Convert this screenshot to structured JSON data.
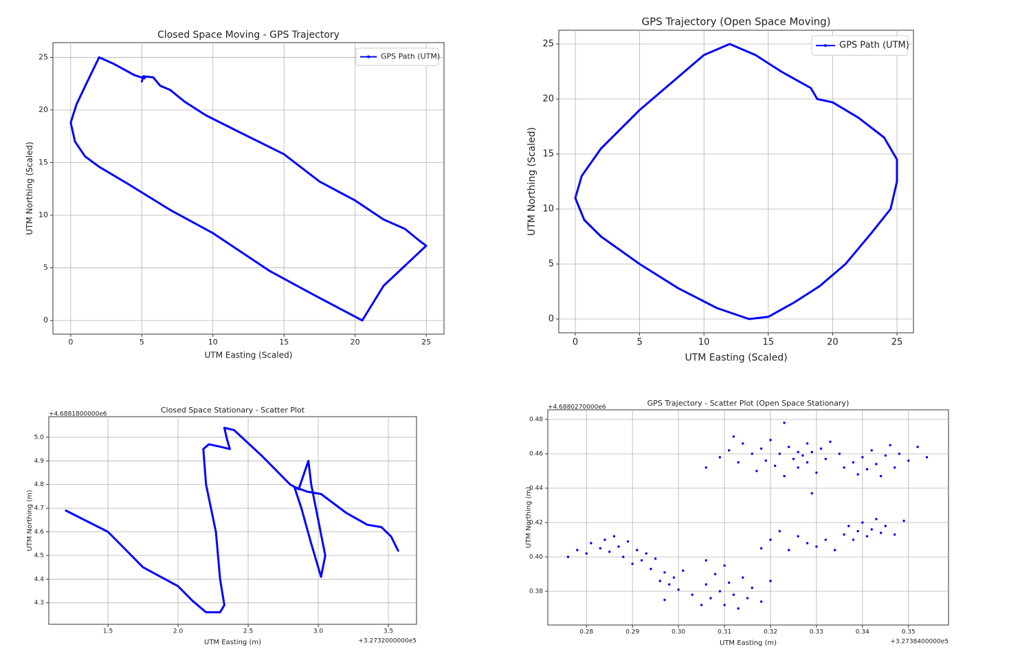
{
  "chart_data": [
    {
      "type": "line",
      "title": "Closed Space Moving - GPS Trajectory",
      "xlabel": "UTM Easting (Scaled)",
      "ylabel": "UTM Northing (Scaled)",
      "xlim": [
        -1.25,
        26.25
      ],
      "ylim": [
        -1.3,
        26.4
      ],
      "xticks": [
        0,
        5,
        10,
        15,
        20,
        25
      ],
      "yticks": [
        0,
        5,
        10,
        15,
        20,
        25
      ],
      "grid": true,
      "legend": "upper right",
      "series": [
        {
          "name": "GPS Path (UTM)",
          "color": "#0000ff",
          "x": [
            5,
            5.1,
            5.8,
            6.3,
            7,
            8,
            9.5,
            12,
            15,
            17.5,
            20,
            22,
            23.5,
            24.5,
            25,
            23.5,
            22,
            20.5,
            17,
            14,
            10,
            7,
            4,
            2,
            1,
            0.3,
            0,
            0.4,
            1.1,
            2,
            3,
            4.5,
            5.2
          ],
          "y": [
            22.7,
            23.2,
            23.1,
            22.3,
            21.9,
            20.8,
            19.5,
            17.8,
            15.8,
            13.2,
            11.4,
            9.6,
            8.7,
            7.6,
            7.1,
            5.2,
            3.3,
            0,
            2.5,
            4.7,
            8.3,
            10.5,
            13,
            14.6,
            15.6,
            17,
            18.8,
            20.5,
            22.5,
            25,
            24.4,
            23.3,
            23.0
          ]
        }
      ]
    },
    {
      "type": "line",
      "title": "GPS Trajectory (Open Space Moving)",
      "xlabel": "UTM Easting (Scaled)",
      "ylabel": "UTM Northing (Scaled)",
      "xlim": [
        -1.28,
        26.28
      ],
      "ylim": [
        -1.25,
        26.25
      ],
      "xticks": [
        0,
        5,
        10,
        15,
        20,
        25
      ],
      "yticks": [
        0,
        5,
        10,
        15,
        20,
        25
      ],
      "grid": true,
      "legend": "upper right",
      "series": [
        {
          "name": "GPS Path (UTM)",
          "color": "#0000ff",
          "x": [
            0,
            0.5,
            2,
            5,
            8,
            10,
            12,
            14,
            16,
            18.3,
            18.8,
            20,
            22,
            24,
            25,
            25,
            24.5,
            23,
            21,
            19,
            17,
            15,
            13.5,
            11,
            8,
            5,
            2,
            0.7,
            0
          ],
          "y": [
            11,
            13,
            15.5,
            19,
            22,
            24,
            25,
            24,
            22.5,
            21,
            20,
            19.7,
            18.3,
            16.5,
            14.5,
            12.5,
            10,
            7.8,
            5,
            3,
            1.5,
            0.2,
            0,
            1,
            2.8,
            5,
            7.5,
            9,
            11
          ]
        }
      ]
    },
    {
      "type": "line",
      "title": "Closed Space Stationary - Scatter Plot",
      "xlabel": "UTM Easting (m)",
      "ylabel": "UTM Northing (m)",
      "x_offset": "+3.2732000000e5",
      "y_offset": "+4.6881800000e6",
      "xlim": [
        1.078,
        3.701
      ],
      "ylim": [
        4.209,
        5.087
      ],
      "xticks": [
        1.5,
        {
          "value": 2,
          "label": "2.0"
        },
        2.5,
        {
          "value": 3,
          "label": "3.0"
        },
        3.5
      ],
      "yticks": [
        4.3,
        4.4,
        4.5,
        4.6,
        4.7,
        4.8,
        4.9,
        {
          "value": 5,
          "label": "5.0"
        }
      ],
      "grid": true,
      "series": [
        {
          "color": "#0000ff",
          "x": [
            1.2,
            1.5,
            1.75,
            2.0,
            2.1,
            2.2,
            2.3,
            2.33,
            2.3,
            2.27,
            2.2,
            2.18,
            2.22,
            2.3,
            2.37,
            2.35,
            2.33,
            2.4,
            2.6,
            2.8,
            2.86,
            2.93,
            2.95,
            3.0,
            3.05,
            3.02,
            2.95,
            2.88,
            2.83,
            2.92,
            3.02,
            3.2,
            3.35,
            3.45,
            3.52,
            3.57
          ],
          "y": [
            4.69,
            4.6,
            4.45,
            4.37,
            4.31,
            4.26,
            4.26,
            4.29,
            4.4,
            4.6,
            4.8,
            4.95,
            4.97,
            4.96,
            4.95,
            4.99,
            5.04,
            5.03,
            4.92,
            4.8,
            4.78,
            4.9,
            4.8,
            4.65,
            4.5,
            4.41,
            4.55,
            4.7,
            4.79,
            4.77,
            4.76,
            4.68,
            4.63,
            4.62,
            4.58,
            4.52
          ]
        }
      ]
    },
    {
      "type": "scatter",
      "title": "GPS Trajectory - Scatter Plot (Open Space Stationary)",
      "xlabel": "UTM Easting (m)",
      "ylabel": "UTM Northing (m)",
      "x_offset": "+3.2738400000e5",
      "y_offset": "+4.6880270000e6",
      "xlim": [
        0.2716,
        0.3587
      ],
      "ylim": [
        0.3604,
        0.4856
      ],
      "xticks": [
        0.28,
        0.29,
        {
          "value": 0.3,
          "label": "0.30"
        },
        0.31,
        0.32,
        0.33,
        0.34,
        0.35
      ],
      "yticks": [
        0.38,
        {
          "value": 0.4,
          "label": "0.40"
        },
        0.42,
        0.44,
        0.46,
        0.48
      ],
      "grid": true,
      "series": [
        {
          "color": "#0000ff",
          "x": [
            0.306,
            0.309,
            0.311,
            0.313,
            0.314,
            0.316,
            0.317,
            0.318,
            0.319,
            0.32,
            0.321,
            0.322,
            0.323,
            0.324,
            0.325,
            0.326,
            0.326,
            0.327,
            0.328,
            0.328,
            0.329,
            0.33,
            0.331,
            0.332,
            0.333,
            0.323,
            0.329,
            0.336,
            0.338,
            0.339,
            0.34,
            0.341,
            0.342,
            0.343,
            0.344,
            0.345,
            0.346,
            0.347,
            0.348,
            0.35,
            0.352,
            0.354,
            0.312,
            0.335,
            0.318,
            0.32,
            0.322,
            0.324,
            0.326,
            0.328,
            0.33,
            0.332,
            0.334,
            0.336,
            0.337,
            0.338,
            0.339,
            0.34,
            0.341,
            0.342,
            0.343,
            0.344,
            0.345,
            0.347,
            0.349,
            0.276,
            0.278,
            0.28,
            0.281,
            0.283,
            0.284,
            0.285,
            0.286,
            0.287,
            0.288,
            0.289,
            0.29,
            0.291,
            0.292,
            0.293,
            0.294,
            0.295,
            0.296,
            0.297,
            0.298,
            0.299,
            0.3,
            0.297,
            0.301,
            0.303,
            0.305,
            0.306,
            0.307,
            0.308,
            0.309,
            0.31,
            0.311,
            0.312,
            0.313,
            0.314,
            0.315,
            0.316,
            0.318,
            0.32,
            0.31,
            0.306
          ],
          "y": [
            0.452,
            0.458,
            0.462,
            0.455,
            0.466,
            0.46,
            0.45,
            0.463,
            0.456,
            0.468,
            0.453,
            0.46,
            0.447,
            0.464,
            0.457,
            0.461,
            0.452,
            0.459,
            0.466,
            0.455,
            0.461,
            0.449,
            0.463,
            0.457,
            0.467,
            0.478,
            0.437,
            0.452,
            0.455,
            0.448,
            0.458,
            0.451,
            0.462,
            0.454,
            0.447,
            0.459,
            0.465,
            0.452,
            0.46,
            0.456,
            0.464,
            0.458,
            0.47,
            0.46,
            0.405,
            0.41,
            0.415,
            0.404,
            0.412,
            0.408,
            0.406,
            0.41,
            0.404,
            0.413,
            0.418,
            0.41,
            0.415,
            0.42,
            0.412,
            0.416,
            0.422,
            0.414,
            0.418,
            0.413,
            0.421,
            0.4,
            0.404,
            0.402,
            0.408,
            0.405,
            0.41,
            0.403,
            0.412,
            0.406,
            0.4,
            0.409,
            0.396,
            0.404,
            0.398,
            0.402,
            0.393,
            0.399,
            0.386,
            0.391,
            0.384,
            0.388,
            0.381,
            0.375,
            0.392,
            0.378,
            0.372,
            0.384,
            0.376,
            0.39,
            0.38,
            0.372,
            0.385,
            0.378,
            0.37,
            0.388,
            0.376,
            0.382,
            0.374,
            0.386,
            0.395,
            0.398
          ]
        }
      ]
    }
  ]
}
